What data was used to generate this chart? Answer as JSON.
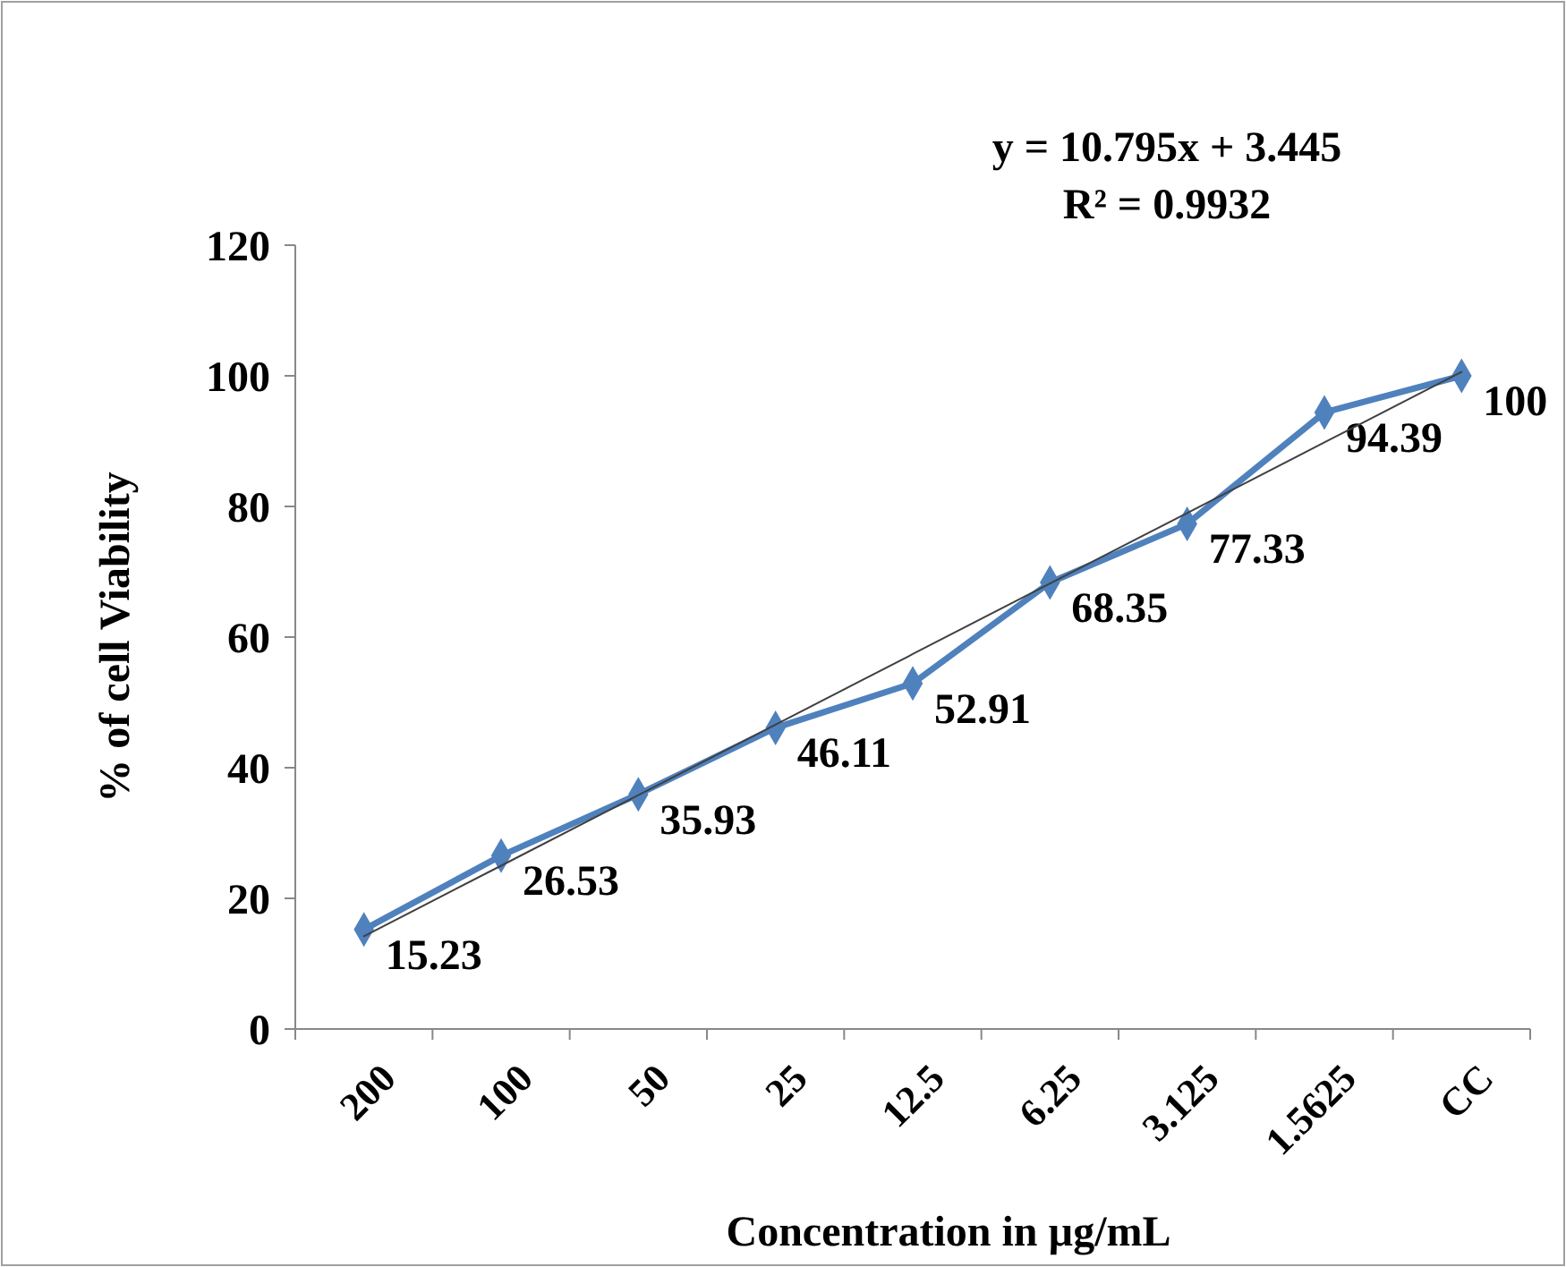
{
  "chart_data": {
    "type": "line",
    "xlabel": "Concentration in µg/mL",
    "ylabel": "% of cell Viability",
    "categories": [
      "200",
      "100",
      "50",
      "25",
      "12.5",
      "6.25",
      "3.125",
      "1.5625",
      "CC"
    ],
    "series": [
      {
        "color": "#4f81bd",
        "values": [
          15.23,
          26.53,
          35.93,
          46.11,
          52.91,
          68.35,
          77.33,
          94.39,
          100
        ],
        "marker": "diamond",
        "data_labels": true
      },
      {
        "type": "line",
        "color": "#404040",
        "values": [
          14.2,
          25.0,
          35.8,
          46.6,
          57.4,
          68.2,
          79.0,
          89.8,
          100.6
        ],
        "marker": "none"
      }
    ],
    "ylim": [
      0,
      120
    ],
    "yticks": [
      0,
      20,
      40,
      60,
      80,
      100,
      120
    ],
    "grid": false,
    "annotations": [
      "y = 10.795x + 3.445",
      "R² = 0.9932"
    ]
  }
}
